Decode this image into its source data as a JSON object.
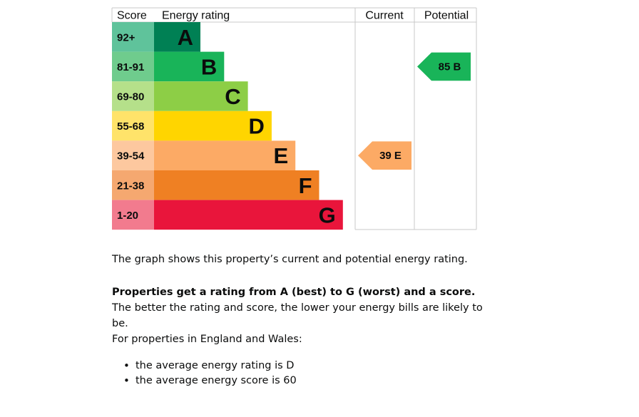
{
  "chart_data": {
    "type": "bar",
    "headers": {
      "score": "Score",
      "rating": "Energy rating",
      "current": "Current",
      "potential": "Potential"
    },
    "bands": [
      {
        "letter": "A",
        "range": "92+",
        "color": "#008054",
        "score_color": "#5fc39b"
      },
      {
        "letter": "B",
        "range": "81-91",
        "color": "#19b459",
        "score_color": "#6fcc8d"
      },
      {
        "letter": "C",
        "range": "69-80",
        "color": "#8dce46",
        "score_color": "#b5e08a"
      },
      {
        "letter": "D",
        "range": "55-68",
        "color": "#ffd500",
        "score_color": "#ffe36a"
      },
      {
        "letter": "E",
        "range": "39-54",
        "color": "#fcaa65",
        "score_color": "#fdc89f"
      },
      {
        "letter": "F",
        "range": "21-38",
        "color": "#ef8023",
        "score_color": "#f5a870"
      },
      {
        "letter": "G",
        "range": "1-20",
        "color": "#e9153b",
        "score_color": "#f27b8e"
      }
    ],
    "current": {
      "score": 39,
      "rating": "E",
      "label": "39 E",
      "color": "#fcaa65"
    },
    "potential": {
      "score": 85,
      "rating": "B",
      "label": "85 B",
      "color": "#19b459"
    }
  },
  "description": "The graph shows this property’s current and potential energy rating.",
  "rating_info": {
    "bold": "Properties get a rating from A (best) to G (worst) and a score.",
    "rest": " The better the rating and score, the lower your energy bills are likely to be."
  },
  "region_intro": "For properties in England and Wales:",
  "averages": [
    "the average energy rating is D",
    "the average energy score is 60"
  ]
}
